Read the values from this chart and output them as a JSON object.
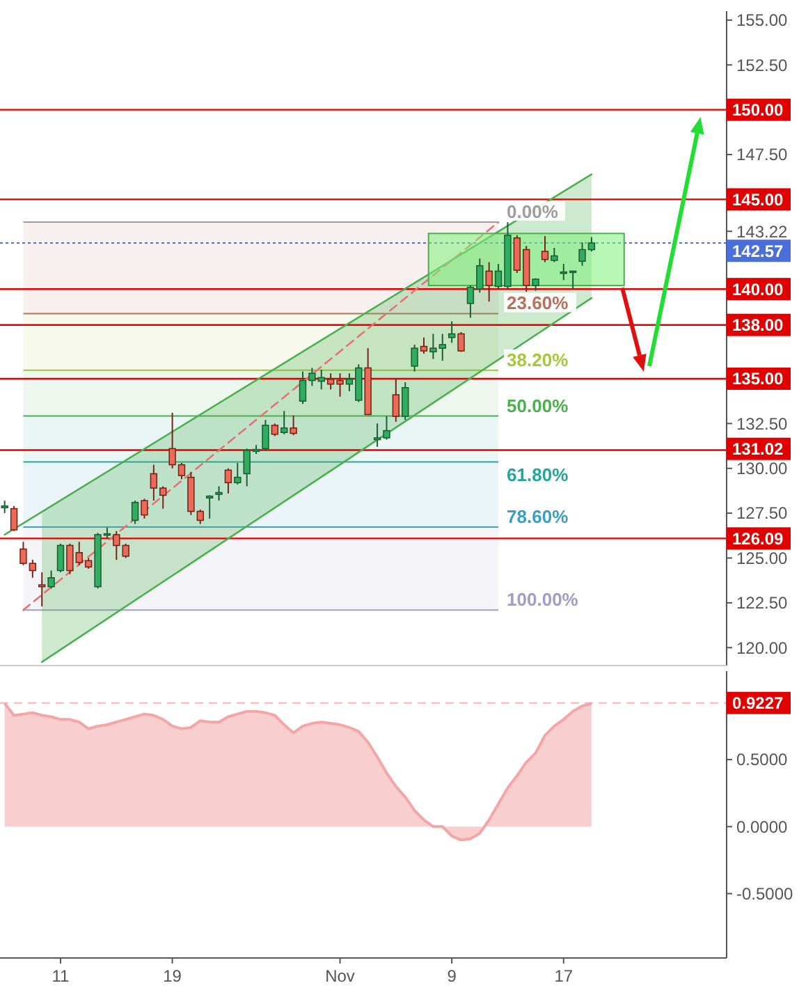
{
  "chart_data": [
    {
      "type": "candlestick",
      "categories": [
        null,
        null,
        null,
        null,
        null,
        null,
        null,
        null,
        null,
        null,
        null,
        null,
        null,
        null,
        null,
        null,
        null,
        null,
        null,
        null,
        null,
        null,
        null,
        null,
        null,
        null,
        null,
        null,
        null,
        null,
        null,
        null,
        null,
        null,
        null,
        null,
        null,
        null,
        null,
        null,
        null,
        null,
        null,
        null,
        null,
        null,
        null,
        null,
        null,
        null,
        null,
        null,
        null,
        null,
        null,
        null,
        null,
        null,
        null,
        null,
        null,
        null,
        null,
        null,
        null,
        null,
        null,
        null,
        null,
        null,
        null,
        null,
        null,
        null,
        null,
        null,
        null,
        null
      ],
      "ohlc": [
        [
          127.8,
          128.2,
          127.5,
          127.9
        ],
        [
          127.75,
          127.9,
          126.5,
          126.57
        ],
        [
          125.5,
          125.9,
          124.6,
          124.7
        ],
        [
          124.7,
          124.9,
          123.9,
          124.3
        ],
        [
          123.5,
          124.2,
          122.3,
          123.4
        ],
        [
          123.4,
          124.3,
          123.3,
          123.9
        ],
        [
          124.3,
          125.8,
          124.2,
          125.7
        ],
        [
          125.7,
          125.8,
          124.1,
          124.3
        ],
        [
          125.3,
          125.9,
          124.6,
          124.75
        ],
        [
          124.85,
          125.0,
          124.4,
          124.5
        ],
        [
          123.4,
          126.4,
          123.3,
          126.3
        ],
        [
          126.3,
          126.7,
          126.1,
          126.35
        ],
        [
          126.3,
          126.5,
          124.9,
          125.7
        ],
        [
          125.7,
          125.8,
          125.0,
          125.1
        ],
        [
          127.1,
          128.2,
          126.9,
          128.1
        ],
        [
          128.2,
          128.3,
          127.2,
          127.4
        ],
        [
          129.7,
          130.2,
          128.2,
          128.9
        ],
        [
          128.9,
          129.0,
          127.75,
          128.5
        ],
        [
          131.1,
          133.1,
          130.0,
          130.2
        ],
        [
          130.2,
          130.3,
          129.4,
          129.6
        ],
        [
          129.5,
          129.8,
          127.4,
          127.6
        ],
        [
          127.6,
          127.7,
          126.9,
          127.1
        ],
        [
          128.35,
          128.5,
          127.2,
          128.45
        ],
        [
          128.55,
          129.0,
          128.2,
          128.65
        ],
        [
          129.9,
          130.0,
          128.6,
          129.2
        ],
        [
          129.2,
          130.3,
          129.1,
          129.5
        ],
        [
          129.7,
          131.1,
          129.0,
          131.0
        ],
        [
          130.95,
          131.3,
          130.8,
          131.05
        ],
        [
          131.1,
          132.7,
          131.0,
          132.4
        ],
        [
          132.4,
          132.5,
          131.8,
          131.9
        ],
        [
          132.0,
          133.2,
          131.9,
          132.25
        ],
        [
          132.25,
          132.95,
          131.85,
          131.95
        ],
        [
          133.75,
          135.4,
          133.6,
          134.9
        ],
        [
          134.9,
          135.6,
          134.6,
          135.3
        ],
        [
          134.86,
          135.5,
          134.4,
          135.06
        ],
        [
          134.97,
          135.3,
          134.4,
          134.7
        ],
        [
          134.9,
          135.3,
          134.0,
          134.7
        ],
        [
          134.7,
          135.3,
          134.3,
          134.97
        ],
        [
          133.8,
          135.8,
          133.7,
          135.6
        ],
        [
          135.6,
          136.7,
          133.0,
          133.0
        ],
        [
          131.6,
          132.5,
          131.2,
          131.7
        ],
        [
          131.7,
          132.9,
          131.6,
          132.1
        ],
        [
          134.1,
          135.0,
          132.6,
          132.9
        ],
        [
          132.9,
          134.8,
          132.7,
          134.5
        ],
        [
          135.7,
          136.9,
          135.4,
          136.7
        ],
        [
          136.8,
          137.3,
          136.4,
          136.55
        ],
        [
          136.5,
          137.5,
          136.1,
          136.7
        ],
        [
          136.7,
          137.5,
          136.0,
          136.9
        ],
        [
          137.3,
          138.2,
          137.0,
          137.5
        ],
        [
          137.5,
          137.6,
          136.5,
          136.55
        ],
        [
          139.2,
          140.2,
          138.4,
          140.1
        ],
        [
          140.0,
          141.7,
          139.8,
          141.3
        ],
        [
          141.0,
          141.5,
          139.3,
          140.2
        ],
        [
          140.15,
          141.4,
          140.0,
          141.0
        ],
        [
          140.15,
          143.73,
          140.0,
          143.0
        ],
        [
          142.85,
          143.0,
          140.9,
          141.05
        ],
        [
          142.2,
          142.4,
          139.85,
          140.2
        ],
        [
          140.2,
          140.6,
          139.9,
          140.55
        ],
        [
          142.1,
          142.95,
          141.5,
          141.65
        ],
        [
          141.6,
          142.3,
          141.5,
          141.85
        ],
        [
          140.9,
          141.4,
          140.5,
          140.95
        ],
        [
          140.95,
          141.0,
          140.0,
          141.0
        ],
        [
          141.55,
          142.6,
          141.3,
          142.2
        ],
        [
          142.2,
          142.9,
          142.1,
          142.57
        ],
        null,
        null,
        null,
        null,
        null,
        null,
        null,
        null,
        null,
        null,
        null,
        null,
        null,
        null
      ],
      "series": [
        {
          "type": "line",
          "color": "#4caf50",
          "values": [
            126.3,
            null,
            null,
            null,
            null,
            null,
            null,
            null,
            null,
            null,
            null,
            null,
            null,
            null,
            null,
            null,
            null,
            null,
            null,
            null,
            null,
            null,
            null,
            null,
            null,
            null,
            null,
            null,
            null,
            null,
            null,
            null,
            null,
            null,
            null,
            null,
            null,
            null,
            null,
            null,
            null,
            null,
            null,
            null,
            null,
            null,
            null,
            null,
            null,
            null,
            null,
            null,
            null,
            null,
            null,
            null,
            null,
            null,
            null,
            null,
            null,
            null,
            null,
            146.4,
            null,
            null,
            null,
            null,
            null,
            null,
            null,
            null,
            null,
            null,
            null,
            null,
            null,
            null
          ]
        },
        {
          "type": "line",
          "color": "#4caf50",
          "values": [
            null,
            null,
            null,
            null,
            119.2,
            null,
            null,
            null,
            null,
            null,
            null,
            null,
            null,
            null,
            null,
            null,
            null,
            null,
            null,
            null,
            null,
            null,
            null,
            null,
            null,
            null,
            null,
            null,
            null,
            null,
            null,
            null,
            null,
            null,
            null,
            null,
            null,
            null,
            null,
            null,
            null,
            null,
            null,
            null,
            null,
            null,
            null,
            null,
            null,
            null,
            null,
            null,
            null,
            null,
            null,
            null,
            null,
            null,
            null,
            null,
            null,
            null,
            null,
            139.5,
            null,
            null,
            null,
            null,
            null,
            null,
            null,
            null,
            null,
            null,
            null,
            null,
            null,
            null
          ],
          "lower": [
            null,
            null,
            null,
            null,
            119.2,
            null,
            null,
            null,
            null,
            null,
            null,
            null,
            null,
            null,
            null,
            null,
            null,
            null,
            null,
            null,
            null,
            null,
            null,
            null,
            null,
            null,
            null,
            null,
            null,
            null,
            null,
            null,
            null,
            null,
            null,
            null,
            null,
            null,
            null,
            null,
            null,
            null,
            null,
            null,
            null,
            null,
            null,
            null,
            null,
            null,
            null,
            null,
            null,
            null,
            null,
            null,
            null,
            null,
            null,
            null,
            null,
            null,
            null,
            139.5,
            null,
            null,
            null,
            null,
            null,
            null,
            null,
            null,
            null,
            null,
            null,
            null,
            null,
            null
          ],
          "upper": [
            null,
            null,
            null,
            null,
            127.6,
            null,
            null,
            null,
            null,
            null,
            null,
            null,
            null,
            null,
            null,
            null,
            null,
            null,
            null,
            null,
            null,
            null,
            null,
            null,
            null,
            null,
            null,
            null,
            null,
            null,
            null,
            null,
            null,
            null,
            null,
            null,
            null,
            null,
            null,
            null,
            null,
            null,
            null,
            null,
            null,
            null,
            null,
            null,
            null,
            null,
            null,
            null,
            null,
            null,
            null,
            null,
            null,
            null,
            null,
            null,
            null,
            null,
            null,
            146.4,
            null,
            null,
            null,
            null,
            null,
            null,
            null,
            null,
            null,
            null,
            null,
            null,
            null,
            null
          ]
        },
        {
          "type": "line",
          "color": "#e57373",
          "line_style": "dashed",
          "values": [
            null,
            null,
            122.1,
            null,
            null,
            null,
            null,
            null,
            null,
            null,
            null,
            null,
            null,
            null,
            null,
            null,
            null,
            null,
            null,
            null,
            null,
            null,
            null,
            null,
            null,
            null,
            null,
            null,
            null,
            null,
            null,
            null,
            null,
            null,
            null,
            null,
            null,
            null,
            null,
            null,
            null,
            null,
            null,
            null,
            null,
            null,
            null,
            null,
            null,
            null,
            null,
            null,
            null,
            143.73,
            null,
            null,
            null,
            null,
            null,
            null,
            null,
            null,
            null,
            null,
            null,
            null,
            null,
            null,
            null,
            null,
            null,
            null,
            null,
            null,
            null,
            null,
            null,
            null
          ]
        }
      ],
      "bands": [
        {
          "axis": "y",
          "from": 138.63,
          "to": 143.73,
          "color": "#b8705f"
        },
        {
          "axis": "y",
          "from": 135.47,
          "to": 138.63,
          "color": "#a9c73c"
        },
        {
          "axis": "y",
          "from": 132.92,
          "to": 135.47,
          "color": "#4caf50"
        },
        {
          "axis": "y",
          "from": 130.36,
          "to": 132.92,
          "color": "#26a69a"
        },
        {
          "axis": "y",
          "from": 126.73,
          "to": 130.36,
          "color": "#3d9fc0"
        },
        {
          "axis": "y",
          "from": 122.1,
          "to": 126.73,
          "color": "#9e9ec8"
        }
      ],
      "annotations": [
        "0.00%",
        "23.60%",
        "38.20%",
        "50.00%",
        "61.80%",
        "78.60%",
        "100.00%"
      ],
      "ref_lines": [
        {
          "axis": "y",
          "value": 150,
          "label": "150.00",
          "color": "#e00000"
        },
        {
          "axis": "y",
          "value": 145,
          "label": "145.00",
          "color": "#e00000"
        },
        {
          "axis": "y",
          "value": 140,
          "label": "140.00",
          "color": "#e00000"
        },
        {
          "axis": "y",
          "value": 138,
          "label": "138.00",
          "color": "#e00000"
        },
        {
          "axis": "y",
          "value": 135,
          "label": "135.00",
          "color": "#e00000"
        },
        {
          "axis": "y",
          "value": 131.02,
          "label": "131.02",
          "color": "#e00000"
        },
        {
          "axis": "y",
          "value": 126.09,
          "label": "126.09",
          "color": "#e00000"
        },
        {
          "axis": "y",
          "value": 142.57,
          "label": "142.57",
          "color": "#4a6fd8",
          "line_style": "dotted"
        }
      ],
      "ylim": [
        119,
        155.5
      ],
      "yticks": [
        {
          "value": 120,
          "label": "120.00"
        },
        {
          "value": 122.5,
          "label": "122.50"
        },
        {
          "value": 125,
          "label": "125.00"
        },
        {
          "value": 127.5,
          "label": "127.50"
        },
        {
          "value": 130,
          "label": "130.00"
        },
        {
          "value": 132.5,
          "label": "132.50"
        },
        143.22,
        {
          "value": 147.5,
          "label": "147.50"
        },
        {
          "value": 152.5,
          "label": "152.50"
        },
        {
          "value": 155,
          "label": "155.00"
        }
      ],
      "tick_labels": "y"
    },
    {
      "type": "area",
      "categories": [
        null,
        null,
        null,
        null,
        null,
        null,
        "11",
        null,
        null,
        null,
        null,
        null,
        null,
        null,
        null,
        null,
        null,
        null,
        "19",
        null,
        null,
        null,
        null,
        null,
        null,
        null,
        null,
        null,
        null,
        null,
        null,
        null,
        null,
        null,
        null,
        null,
        "Nov",
        null,
        null,
        null,
        null,
        null,
        null,
        null,
        null,
        null,
        null,
        null,
        "9",
        null,
        null,
        null,
        null,
        null,
        null,
        null,
        null,
        null,
        null,
        null,
        "17",
        null,
        null,
        null,
        null,
        null,
        null,
        null,
        null,
        null,
        null,
        null,
        null,
        null,
        null,
        null,
        null,
        null
      ],
      "series": [
        {
          "color": "#f4a6a6",
          "values": [
            0.92,
            0.83,
            0.84,
            0.85,
            0.83,
            0.82,
            0.8,
            0.8,
            0.78,
            0.73,
            0.75,
            0.76,
            0.78,
            0.8,
            0.82,
            0.84,
            0.83,
            0.8,
            0.75,
            0.73,
            0.74,
            0.79,
            0.78,
            0.78,
            0.82,
            0.84,
            0.86,
            0.86,
            0.85,
            0.83,
            0.76,
            0.7,
            0.75,
            0.77,
            0.78,
            0.77,
            0.76,
            0.74,
            0.71,
            0.63,
            0.52,
            0.4,
            0.3,
            0.22,
            0.12,
            0.05,
            0.0,
            0.0,
            -0.07,
            -0.1,
            -0.09,
            -0.05,
            0.05,
            0.17,
            0.29,
            0.38,
            0.48,
            0.55,
            0.68,
            0.75,
            0.8,
            0.86,
            0.9,
            0.92,
            null,
            null,
            null,
            null,
            null,
            null,
            null,
            null,
            null,
            null,
            null,
            null,
            null,
            null
          ]
        }
      ],
      "ref_lines": [
        {
          "axis": "y",
          "value": 0.9227,
          "label": "0.9227",
          "color": "#f6c1c1",
          "line_style": "dashed"
        }
      ],
      "ylim": [
        -0.98,
        1.16
      ],
      "yticks": [
        {
          "value": -0.5,
          "label": "-0.5000"
        },
        {
          "value": 0,
          "label": "0.0000"
        },
        {
          "value": 0.5,
          "label": "0.5000"
        }
      ]
    }
  ]
}
